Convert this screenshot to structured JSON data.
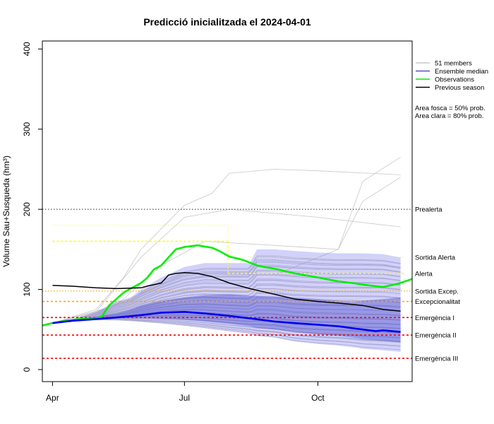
{
  "chart_data": {
    "type": "line",
    "title": "Predicció inicialitzada el 2024-04-01",
    "xlabel": "",
    "ylabel": "Volume Sau+Susqueda (hm³)",
    "xlim": [
      "2024-03-25",
      "2024-12-05"
    ],
    "ylim": [
      -15,
      410
    ],
    "yticks": [
      0,
      100,
      200,
      300,
      400
    ],
    "xticks": [
      {
        "date": "2024-04-01",
        "label": "Apr"
      },
      {
        "date": "2024-07-01",
        "label": "Jul"
      },
      {
        "date": "2024-10-01",
        "label": "Oct"
      }
    ],
    "grid": false,
    "legend": {
      "position": "top-right, outside plot",
      "entries": [
        {
          "label": "51 members",
          "color": "#c8c8c8"
        },
        {
          "label": "Ensemble median",
          "color": "#5050c8"
        },
        {
          "label": "Observations",
          "color": "#00ee00"
        },
        {
          "label": "Previous season",
          "color": "#000000"
        }
      ]
    },
    "notes": [
      "Area fosca = 50% prob.",
      "Area clara = 80% prob."
    ],
    "thresholds": [
      {
        "label": "Prealerta",
        "value": 200,
        "color": "#606060",
        "style": "dotted"
      },
      {
        "label": "Sortida Alerta",
        "value": 140,
        "color": "#ffff00",
        "style": "dotted",
        "until": "2024-07-31"
      },
      {
        "label": "Alerta",
        "value": 120,
        "color": "#ffff00",
        "style": "dotted",
        "until": "2024-07-31"
      },
      {
        "label": "Sortida Excep.",
        "value": 98,
        "color": "#ffa500",
        "style": "dotted"
      },
      {
        "label": "Excepcionalitat",
        "value": 85,
        "color": "#ffa500",
        "style": "dashed"
      },
      {
        "label": "Emergència I",
        "value": 65,
        "color": "#ff0000",
        "style": "dashed"
      },
      {
        "label": "Emergència II",
        "value": 43,
        "color": "#ff0000",
        "style": "dashed"
      },
      {
        "label": "Emergència III",
        "value": 14,
        "color": "#ff0000",
        "style": "dashed"
      }
    ],
    "threshold_segments": [
      {
        "value": 180,
        "from": "2024-04-01",
        "to": "2024-07-31",
        "color": "#ffff00",
        "style": "dotted",
        "weight": "thin"
      },
      {
        "value": 160,
        "from": "2024-04-01",
        "to": "2024-07-31",
        "color": "#ffff00",
        "style": "dashed",
        "weight": "thick"
      },
      {
        "value": 140,
        "from": "2024-07-31",
        "to": "2024-11-30",
        "color": "#ffff00",
        "style": "dotted",
        "weight": "thin"
      },
      {
        "value": 120,
        "from": "2024-07-31",
        "to": "2024-11-30",
        "color": "#ffff00",
        "style": "dashed",
        "weight": "thick"
      }
    ],
    "band80": {
      "x": [
        "2024-04-01",
        "2024-04-15",
        "2024-05-01",
        "2024-05-15",
        "2024-05-25",
        "2024-06-01",
        "2024-06-15",
        "2024-07-01",
        "2024-07-15",
        "2024-08-01",
        "2024-08-15",
        "2024-08-20",
        "2024-09-01",
        "2024-09-15",
        "2024-10-01",
        "2024-10-15",
        "2024-10-25",
        "2024-11-01",
        "2024-11-15",
        "2024-11-27"
      ],
      "upper": [
        58,
        63,
        72,
        85,
        90,
        100,
        115,
        128,
        133,
        133,
        133,
        150,
        150,
        148,
        146,
        145,
        145,
        145,
        144,
        140
      ],
      "lower": [
        58,
        60,
        62,
        62,
        61,
        60,
        58,
        55,
        52,
        48,
        45,
        42,
        40,
        35,
        32,
        30,
        28,
        26,
        24,
        22
      ]
    },
    "band50": {
      "x": [
        "2024-04-01",
        "2024-04-15",
        "2024-05-01",
        "2024-05-15",
        "2024-05-25",
        "2024-06-01",
        "2024-06-15",
        "2024-07-01",
        "2024-07-15",
        "2024-08-01",
        "2024-08-15",
        "2024-08-20",
        "2024-09-01",
        "2024-09-15",
        "2024-10-01",
        "2024-10-15",
        "2024-10-25",
        "2024-11-01",
        "2024-11-15",
        "2024-11-27"
      ],
      "upper": [
        58,
        62,
        66,
        70,
        75,
        80,
        86,
        90,
        93,
        94,
        92,
        92,
        91,
        90,
        88,
        86,
        84,
        86,
        88,
        90
      ],
      "lower": [
        58,
        61,
        63,
        64,
        64,
        64,
        63,
        62,
        60,
        57,
        54,
        52,
        50,
        47,
        44,
        42,
        40,
        38,
        36,
        34
      ]
    },
    "series": [
      {
        "name": "Observations",
        "color": "#00ee00",
        "x": [
          "2024-03-25",
          "2024-04-01",
          "2024-04-10",
          "2024-04-20",
          "2024-05-01",
          "2024-05-05",
          "2024-05-10",
          "2024-05-15",
          "2024-05-20",
          "2024-05-25",
          "2024-06-01",
          "2024-06-05",
          "2024-06-10",
          "2024-06-15",
          "2024-06-25",
          "2024-07-01",
          "2024-07-10",
          "2024-07-20",
          "2024-07-25",
          "2024-08-01",
          "2024-08-10",
          "2024-08-20",
          "2024-08-25",
          "2024-09-01",
          "2024-09-15",
          "2024-10-01",
          "2024-10-15",
          "2024-10-25",
          "2024-11-01",
          "2024-11-10",
          "2024-11-15",
          "2024-11-20",
          "2024-11-25",
          "2024-12-05"
        ],
        "y": [
          55,
          58,
          61,
          63,
          64,
          66,
          80,
          88,
          96,
          101,
          108,
          114,
          125,
          130,
          150,
          153,
          155,
          152,
          148,
          141,
          137,
          130,
          128,
          126,
          120,
          115,
          110,
          108,
          106,
          104,
          103,
          105,
          107,
          113
        ]
      },
      {
        "name": "Previous season",
        "color": "#000000",
        "x": [
          "2024-04-01",
          "2024-04-15",
          "2024-05-01",
          "2024-05-15",
          "2024-06-01",
          "2024-06-05",
          "2024-06-15",
          "2024-06-20",
          "2024-06-25",
          "2024-07-01",
          "2024-07-10",
          "2024-07-20",
          "2024-08-01",
          "2024-08-15",
          "2024-09-01",
          "2024-09-15",
          "2024-10-01",
          "2024-10-15",
          "2024-11-01",
          "2024-11-15",
          "2024-11-27"
        ],
        "y": [
          105,
          104,
          102,
          101,
          102,
          104,
          108,
          118,
          120,
          121,
          120,
          116,
          108,
          101,
          94,
          88,
          85,
          83,
          80,
          75,
          73
        ]
      },
      {
        "name": "Ensemble median",
        "color": "#0000ee",
        "x": [
          "2024-04-01",
          "2024-04-15",
          "2024-05-01",
          "2024-05-15",
          "2024-06-01",
          "2024-06-15",
          "2024-07-01",
          "2024-07-15",
          "2024-08-01",
          "2024-08-15",
          "2024-09-01",
          "2024-09-15",
          "2024-10-01",
          "2024-10-15",
          "2024-11-01",
          "2024-11-10",
          "2024-11-15",
          "2024-11-27"
        ],
        "y": [
          58,
          61,
          63,
          65,
          68,
          71,
          72,
          70,
          67,
          64,
          60,
          58,
          56,
          54,
          50,
          48,
          49,
          47
        ]
      }
    ]
  }
}
